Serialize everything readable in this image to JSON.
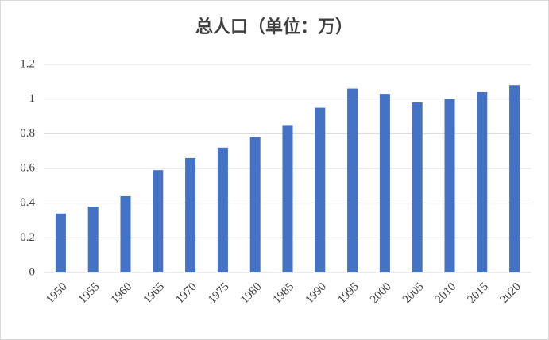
{
  "chart_data": {
    "type": "bar",
    "title": "总人口（单位：万）",
    "categories": [
      "1950",
      "1955",
      "1960",
      "1965",
      "1970",
      "1975",
      "1980",
      "1985",
      "1990",
      "1995",
      "2000",
      "2005",
      "2010",
      "2015",
      "2020"
    ],
    "values": [
      0.34,
      0.38,
      0.44,
      0.59,
      0.66,
      0.72,
      0.78,
      0.85,
      0.95,
      1.06,
      1.03,
      0.98,
      1.0,
      1.04,
      1.08
    ],
    "color": "#4472c4",
    "ylim": [
      0,
      1.2
    ],
    "yticks": [
      0,
      0.2,
      0.4,
      0.6,
      0.8,
      1,
      1.2
    ],
    "grid": true
  }
}
